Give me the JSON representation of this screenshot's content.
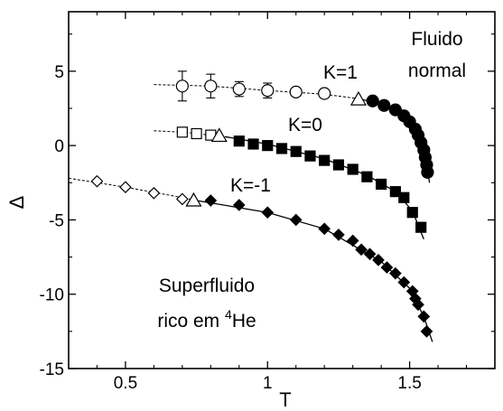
{
  "chart_data": {
    "type": "scatter",
    "xlabel": "T",
    "ylabel": "Δ",
    "xlim": [
      0.3,
      1.8
    ],
    "ylim": [
      -15,
      9
    ],
    "grid": false,
    "xticks": [
      0.5,
      1,
      1.5
    ],
    "xtick_labels": [
      "0.5",
      "1",
      "1.5"
    ],
    "yticks": [
      5,
      0,
      -5,
      -10,
      -15
    ],
    "ytick_labels": [
      "5",
      "0",
      "-5",
      "-10",
      "-15"
    ],
    "annotations": {
      "k1": "K=1",
      "k0": "K=0",
      "km1": "K=-1",
      "normal_1": "Fluido",
      "normal_2": "normal",
      "super_1": "Superfluido",
      "super_2_pre": "rico em ",
      "super_2_sup": "4",
      "super_2_post": "He"
    },
    "series": [
      {
        "label": "K=1",
        "open_circles": [
          [
            0.7,
            4.0
          ],
          [
            0.8,
            4.0
          ],
          [
            0.9,
            3.8
          ],
          [
            1.0,
            3.7
          ],
          [
            1.1,
            3.6
          ],
          [
            1.2,
            3.5
          ]
        ],
        "error_bars": [
          1.0,
          0.8,
          0.5,
          0.5,
          0.25,
          0.2
        ],
        "triangle": [
          1.32,
          3.1
        ],
        "filled_circles": [
          [
            1.37,
            3.0
          ],
          [
            1.41,
            2.7
          ],
          [
            1.45,
            2.4
          ],
          [
            1.48,
            2.0
          ],
          [
            1.5,
            1.6
          ],
          [
            1.52,
            1.1
          ],
          [
            1.53,
            0.7
          ],
          [
            1.54,
            0.2
          ],
          [
            1.55,
            -0.3
          ],
          [
            1.555,
            -0.8
          ],
          [
            1.56,
            -1.3
          ],
          [
            1.563,
            -1.8
          ]
        ],
        "dashed_line": [
          [
            0.6,
            4.1
          ],
          [
            0.8,
            4.0
          ],
          [
            1.0,
            3.7
          ],
          [
            1.2,
            3.45
          ],
          [
            1.32,
            3.15
          ]
        ],
        "solid_line": [
          [
            1.32,
            3.15
          ],
          [
            1.4,
            2.8
          ],
          [
            1.48,
            2.0
          ],
          [
            1.53,
            0.9
          ],
          [
            1.555,
            -0.5
          ],
          [
            1.57,
            -2.5
          ]
        ]
      },
      {
        "label": "K=0",
        "open_squares": [
          [
            0.7,
            0.9
          ],
          [
            0.75,
            0.8
          ],
          [
            0.8,
            0.7
          ]
        ],
        "triangle": [
          0.83,
          0.65
        ],
        "filled_squares": [
          [
            0.9,
            0.3
          ],
          [
            0.95,
            0.1
          ],
          [
            1.0,
            0.0
          ],
          [
            1.05,
            -0.2
          ],
          [
            1.1,
            -0.4
          ],
          [
            1.15,
            -0.7
          ],
          [
            1.2,
            -1.0
          ],
          [
            1.25,
            -1.3
          ],
          [
            1.3,
            -1.6
          ],
          [
            1.35,
            -2.1
          ],
          [
            1.4,
            -2.6
          ],
          [
            1.45,
            -3.1
          ],
          [
            1.48,
            -3.5
          ],
          [
            1.51,
            -4.5
          ],
          [
            1.54,
            -5.5
          ]
        ],
        "dashed_line": [
          [
            0.6,
            1.0
          ],
          [
            0.7,
            0.9
          ],
          [
            0.8,
            0.7
          ],
          [
            0.85,
            0.6
          ]
        ],
        "solid_line": [
          [
            0.85,
            0.6
          ],
          [
            1.0,
            0.1
          ],
          [
            1.2,
            -0.9
          ],
          [
            1.35,
            -2.0
          ],
          [
            1.45,
            -3.1
          ],
          [
            1.51,
            -4.4
          ],
          [
            1.55,
            -6.3
          ]
        ]
      },
      {
        "label": "K=-1",
        "open_diamonds": [
          [
            0.4,
            -2.4
          ],
          [
            0.5,
            -2.8
          ],
          [
            0.6,
            -3.2
          ],
          [
            0.7,
            -3.6
          ]
        ],
        "triangle": [
          0.74,
          -3.7
        ],
        "filled_diamonds": [
          [
            0.8,
            -3.7
          ],
          [
            0.9,
            -4.0
          ],
          [
            1.0,
            -4.5
          ],
          [
            1.1,
            -5.0
          ],
          [
            1.2,
            -5.6
          ],
          [
            1.25,
            -6.0
          ],
          [
            1.3,
            -6.4
          ],
          [
            1.33,
            -7.0
          ],
          [
            1.36,
            -7.3
          ],
          [
            1.39,
            -7.7
          ],
          [
            1.42,
            -8.2
          ],
          [
            1.45,
            -8.6
          ],
          [
            1.48,
            -9.2
          ],
          [
            1.51,
            -9.8
          ],
          [
            1.52,
            -10.3
          ],
          [
            1.53,
            -10.7
          ],
          [
            1.55,
            -11.5
          ],
          [
            1.56,
            -12.5
          ]
        ],
        "dashed_line": [
          [
            0.3,
            -2.2
          ],
          [
            0.5,
            -2.8
          ],
          [
            0.7,
            -3.5
          ],
          [
            0.75,
            -3.7
          ]
        ],
        "solid_line": [
          [
            0.75,
            -3.7
          ],
          [
            1.0,
            -4.5
          ],
          [
            1.2,
            -5.6
          ],
          [
            1.4,
            -7.8
          ],
          [
            1.5,
            -9.6
          ],
          [
            1.55,
            -11.5
          ],
          [
            1.58,
            -13.2
          ]
        ]
      }
    ]
  }
}
